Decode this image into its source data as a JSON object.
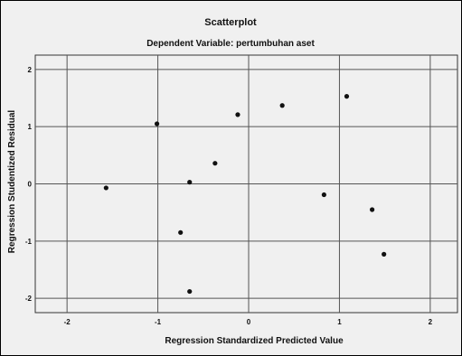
{
  "chart_data": {
    "type": "scatter",
    "title": "Scatterplot",
    "subtitle": "Dependent Variable: pertumbuhan aset",
    "xlabel": "Regression Standardized Predicted Value",
    "ylabel": "Regression Studentized Residual",
    "xlim": [
      -2.35,
      2.3
    ],
    "ylim": [
      -2.25,
      2.25
    ],
    "xticks": [
      -2,
      -1,
      0,
      1,
      2
    ],
    "xtick_labels": [
      "-2",
      "-1",
      "0",
      "1",
      "2"
    ],
    "yticks": [
      -2,
      -1,
      0,
      1,
      2
    ],
    "ytick_labels": [
      "-2",
      "-1",
      "0",
      "1",
      "2"
    ],
    "grid": true,
    "colors": {
      "background": "#f0f0f0",
      "plot_background": "#f0f0f0",
      "grid": "#555555",
      "point": "#111111"
    },
    "points": [
      {
        "x": -1.57,
        "y": -0.07
      },
      {
        "x": -1.01,
        "y": 1.05
      },
      {
        "x": -0.75,
        "y": -0.85
      },
      {
        "x": -0.65,
        "y": 0.03
      },
      {
        "x": -0.65,
        "y": -1.88
      },
      {
        "x": -0.37,
        "y": 0.36
      },
      {
        "x": -0.12,
        "y": 1.21
      },
      {
        "x": 0.37,
        "y": 1.37
      },
      {
        "x": 0.83,
        "y": -0.19
      },
      {
        "x": 1.08,
        "y": 1.53
      },
      {
        "x": 1.36,
        "y": -0.45
      },
      {
        "x": 1.49,
        "y": -1.23
      }
    ]
  }
}
